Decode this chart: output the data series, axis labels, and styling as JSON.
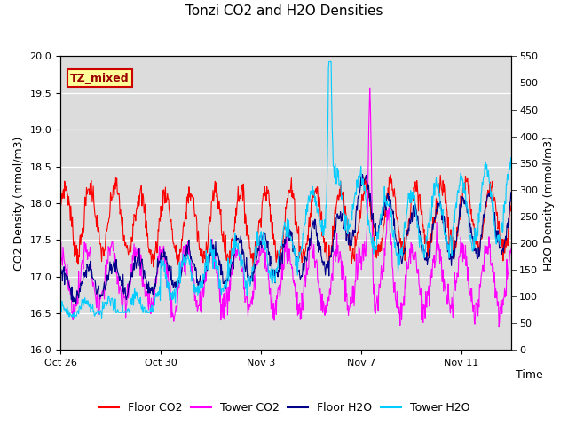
{
  "title": "Tonzi CO2 and H2O Densities",
  "xlabel": "Time",
  "ylabel_left": "CO2 Density (mmol/m3)",
  "ylabel_right": "H2O Density (mmol/m3)",
  "annotation_text": "TZ_mixed",
  "ylim_left": [
    16.0,
    20.0
  ],
  "ylim_right": [
    0,
    550
  ],
  "yticks_left": [
    16.0,
    16.5,
    17.0,
    17.5,
    18.0,
    18.5,
    19.0,
    19.5,
    20.0
  ],
  "yticks_right": [
    0,
    50,
    100,
    150,
    200,
    250,
    300,
    350,
    400,
    450,
    500,
    550
  ],
  "xtick_labels": [
    "Oct 26",
    "Oct 30",
    "Nov 3",
    "Nov 7",
    "Nov 11"
  ],
  "xtick_positions": [
    0,
    4,
    8,
    12,
    16
  ],
  "n_days": 18,
  "points_per_day": 48,
  "floor_co2_color": "#FF0000",
  "tower_co2_color": "#FF00FF",
  "floor_h2o_color": "#00008B",
  "tower_h2o_color": "#00CCFF",
  "bg_color": "#DCDCDC",
  "fig_bg_color": "#FFFFFF",
  "annotation_bg": "#FFFF99",
  "annotation_border": "#CC0000",
  "legend_labels": [
    "Floor CO2",
    "Tower CO2",
    "Floor H2O",
    "Tower H2O"
  ],
  "title_fontsize": 11,
  "axis_label_fontsize": 9,
  "tick_fontsize": 8,
  "legend_fontsize": 9,
  "linewidth": 0.8,
  "seed": 7
}
